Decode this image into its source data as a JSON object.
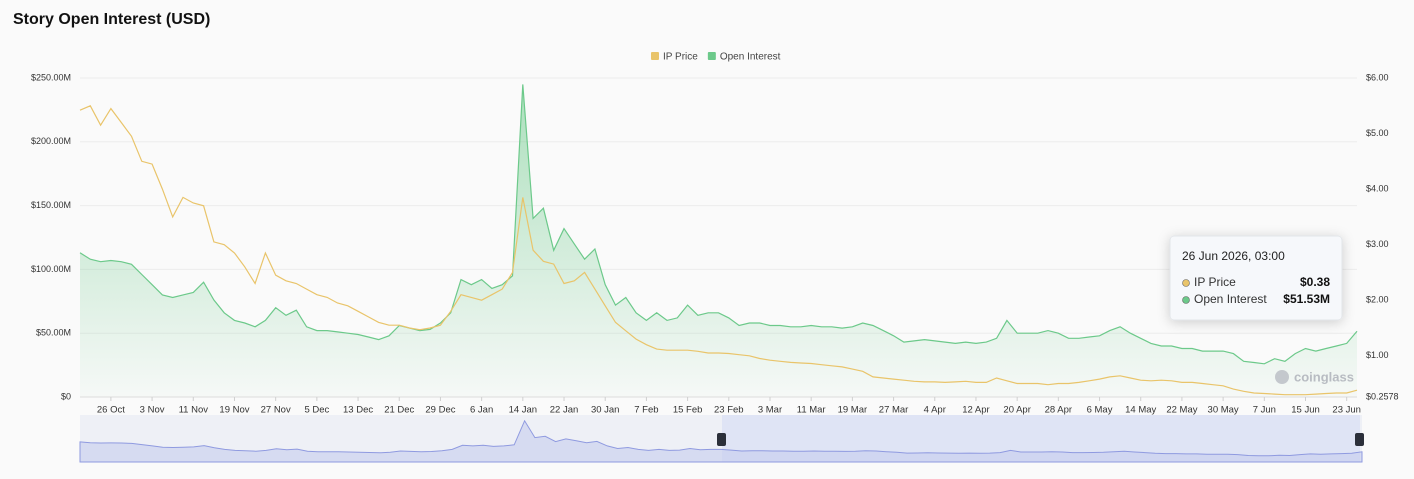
{
  "chart_data": {
    "type": "line",
    "title": "Story Open Interest (USD)",
    "categories": [
      null,
      null,
      null,
      "26 Oct",
      null,
      null,
      null,
      "3 Nov",
      null,
      null,
      null,
      "11 Nov",
      null,
      null,
      null,
      "19 Nov",
      null,
      null,
      null,
      "27 Nov",
      null,
      null,
      null,
      "5 Dec",
      null,
      null,
      null,
      "13 Dec",
      null,
      null,
      null,
      "21 Dec",
      null,
      null,
      null,
      "29 Dec",
      null,
      null,
      null,
      "6 Jan",
      null,
      null,
      null,
      "14 Jan",
      null,
      null,
      null,
      "22 Jan",
      null,
      null,
      null,
      "30 Jan",
      null,
      null,
      null,
      "7 Feb",
      null,
      null,
      null,
      "15 Feb",
      null,
      null,
      null,
      "23 Feb",
      null,
      null,
      null,
      "3 Mar",
      null,
      null,
      null,
      "11 Mar",
      null,
      null,
      null,
      "19 Mar",
      null,
      null,
      null,
      "27 Mar",
      null,
      null,
      null,
      "4 Apr",
      null,
      null,
      null,
      "12 Apr",
      null,
      null,
      null,
      "20 Apr",
      null,
      null,
      null,
      "28 Apr",
      null,
      null,
      null,
      "6 May",
      null,
      null,
      null,
      "14 May",
      null,
      null,
      null,
      "22 May",
      null,
      null,
      null,
      "30 May",
      null,
      null,
      null,
      "7 Jun",
      null,
      null,
      null,
      "15 Jun",
      null,
      null,
      null,
      "23 Jun",
      null
    ],
    "series": [
      {
        "name": "IP Price",
        "color": "#e9c46a",
        "axis": "y2",
        "values": [
          5.42,
          5.5,
          5.15,
          5.45,
          5.2,
          4.95,
          4.5,
          4.45,
          4.0,
          3.5,
          3.85,
          3.75,
          3.7,
          3.05,
          3.0,
          2.85,
          2.6,
          2.3,
          2.85,
          2.45,
          2.35,
          2.3,
          2.2,
          2.1,
          2.05,
          1.95,
          1.9,
          1.8,
          1.7,
          1.6,
          1.55,
          1.55,
          1.5,
          1.47,
          1.5,
          1.55,
          1.8,
          2.1,
          2.05,
          2.0,
          2.1,
          2.2,
          2.5,
          3.85,
          2.9,
          2.7,
          2.65,
          2.3,
          2.35,
          2.5,
          2.2,
          1.9,
          1.6,
          1.45,
          1.3,
          1.2,
          1.12,
          1.1,
          1.1,
          1.1,
          1.08,
          1.05,
          1.05,
          1.04,
          1.02,
          1.0,
          0.95,
          0.92,
          0.9,
          0.88,
          0.87,
          0.86,
          0.84,
          0.82,
          0.8,
          0.76,
          0.72,
          0.62,
          0.6,
          0.58,
          0.56,
          0.54,
          0.53,
          0.53,
          0.52,
          0.53,
          0.54,
          0.52,
          0.52,
          0.6,
          0.55,
          0.5,
          0.5,
          0.5,
          0.48,
          0.5,
          0.5,
          0.52,
          0.55,
          0.58,
          0.62,
          0.64,
          0.6,
          0.56,
          0.55,
          0.56,
          0.55,
          0.52,
          0.52,
          0.5,
          0.48,
          0.46,
          0.4,
          0.36,
          0.33,
          0.32,
          0.31,
          0.3,
          0.3,
          0.3,
          0.31,
          0.32,
          0.33,
          0.33,
          0.38
        ]
      },
      {
        "name": "Open Interest",
        "color": "#6cc98a",
        "values": [
          113000000,
          108000000,
          106000000,
          107000000,
          106000000,
          104000000,
          96000000,
          88000000,
          80000000,
          78000000,
          80000000,
          82000000,
          90000000,
          76000000,
          66000000,
          60000000,
          58000000,
          55000000,
          60000000,
          70000000,
          64000000,
          68000000,
          55000000,
          52000000,
          52000000,
          51000000,
          50000000,
          49000000,
          47000000,
          45000000,
          48000000,
          56000000,
          54000000,
          52000000,
          53000000,
          58000000,
          66000000,
          92000000,
          88000000,
          92000000,
          85000000,
          88000000,
          95000000,
          245000000,
          140000000,
          148000000,
          115000000,
          132000000,
          120000000,
          108000000,
          116000000,
          88000000,
          72000000,
          78000000,
          66000000,
          60000000,
          66000000,
          60000000,
          62000000,
          72000000,
          64000000,
          66000000,
          66000000,
          62000000,
          56000000,
          58000000,
          58000000,
          56000000,
          56000000,
          55000000,
          55000000,
          56000000,
          55000000,
          55000000,
          54000000,
          55000000,
          58000000,
          56000000,
          52000000,
          48000000,
          43000000,
          44000000,
          45000000,
          44000000,
          43000000,
          42000000,
          43000000,
          42000000,
          43000000,
          46000000,
          60000000,
          50000000,
          50000000,
          50000000,
          52000000,
          50000000,
          46000000,
          46000000,
          47000000,
          48000000,
          52000000,
          55000000,
          50000000,
          46000000,
          42000000,
          40000000,
          40000000,
          38000000,
          38000000,
          36000000,
          36000000,
          36000000,
          34000000,
          28000000,
          27000000,
          26000000,
          30000000,
          28000000,
          34000000,
          38000000,
          36000000,
          38000000,
          40000000,
          42000000,
          51530000
        ]
      }
    ],
    "ylim": [
      0,
      250000000
    ],
    "yticks": [
      {
        "value": 0,
        "label": "$0"
      },
      {
        "value": 50000000,
        "label": "$50.00M"
      },
      {
        "value": 100000000,
        "label": "$100.00M"
      },
      {
        "value": 150000000,
        "label": "$150.00M"
      },
      {
        "value": 200000000,
        "label": "$200.00M"
      },
      {
        "value": 250000000,
        "label": "$250.00M"
      }
    ],
    "y2lim": [
      0.2578,
      6.0
    ],
    "y2ticks": [
      {
        "value": 0.2578,
        "label": "$0.2578"
      },
      {
        "value": 1,
        "label": "$1.00"
      },
      {
        "value": 2,
        "label": "$2.00"
      },
      {
        "value": 3,
        "label": "$3.00"
      },
      {
        "value": 4,
        "label": "$4.00"
      },
      {
        "value": 5,
        "label": "$5.00"
      },
      {
        "value": 6,
        "label": "$6.00"
      }
    ],
    "grid": true,
    "legend": "top",
    "watermark": "coinglass",
    "tooltip": {
      "title": "26 Jun 2026, 03:00",
      "labels": [
        "$0.38",
        "$51.53M"
      ]
    }
  }
}
